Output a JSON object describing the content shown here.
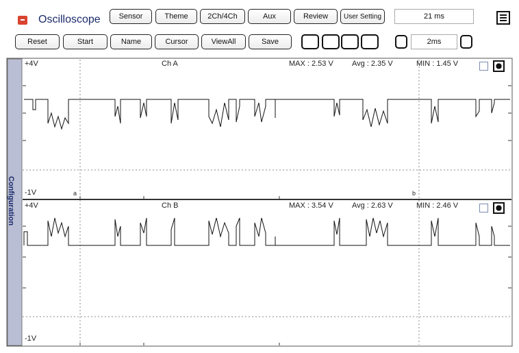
{
  "header": {
    "title": "Oscilloscope",
    "buttons": [
      "Sensor",
      "Theme",
      "2Ch/4Ch",
      "Aux",
      "Review",
      "User Setting"
    ],
    "time": "21 ms"
  },
  "toolbar": {
    "buttons": [
      "Reset",
      "Start",
      "Name",
      "Cursor",
      "ViewAll",
      "Save"
    ],
    "timebase": "2ms"
  },
  "sidebar": {
    "label": "Configuration"
  },
  "channels": [
    {
      "top_label": "+4V",
      "name": "Ch A",
      "max": "MAX : 2.53 V",
      "avg": "Avg : 2.35 V",
      "min": "MIN : 1.45 V",
      "bottom_label": "-1V",
      "cursor_a": "a",
      "cursor_b": "b"
    },
    {
      "top_label": "+4V",
      "name": "Ch B",
      "max": "MAX : 3.54 V",
      "avg": "Avg : 2.63 V",
      "min": "MIN : 2.46 V",
      "bottom_label": "-1V"
    }
  ]
}
